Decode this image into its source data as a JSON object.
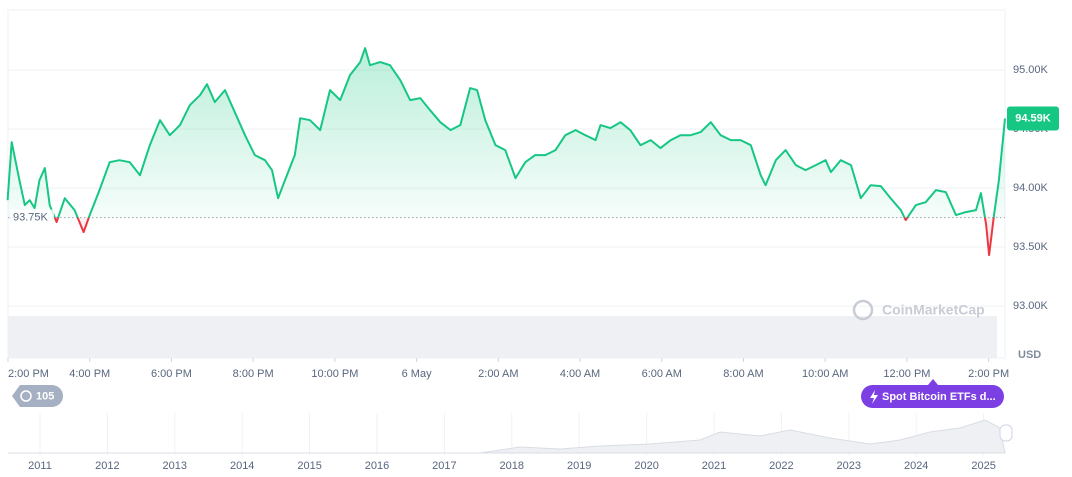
{
  "chart_data": {
    "type": "line",
    "x": [
      13.99,
      14.09,
      14.28,
      14.41,
      14.53,
      14.65,
      14.77,
      14.9,
      15.02,
      15.19,
      15.39,
      15.63,
      15.85,
      16.0,
      16.24,
      16.49,
      16.73,
      16.98,
      17.23,
      17.47,
      17.72,
      17.96,
      18.21,
      18.45,
      18.7,
      18.87,
      19.06,
      19.31,
      19.55,
      19.8,
      20.04,
      20.29,
      20.46,
      20.61,
      20.78,
      21.02,
      21.15,
      21.39,
      21.64,
      21.88,
      22.13,
      22.37,
      22.62,
      22.74,
      22.86,
      23.11,
      23.35,
      23.6,
      23.84,
      24.09,
      24.33,
      24.58,
      24.83,
      25.07,
      25.31,
      25.48,
      25.68,
      25.93,
      26.17,
      26.42,
      26.66,
      26.9,
      27.15,
      27.4,
      27.64,
      27.89,
      28.13,
      28.38,
      28.5,
      28.74,
      28.99,
      29.23,
      29.48,
      29.73,
      29.97,
      30.22,
      30.46,
      30.71,
      30.95,
      31.2,
      31.44,
      31.69,
      31.93,
      32.18,
      32.42,
      32.54,
      32.79,
      33.03,
      33.28,
      33.52,
      33.77,
      34.01,
      34.14,
      34.38,
      34.63,
      34.87,
      35.11,
      35.36,
      35.6,
      35.85,
      35.97,
      36.22,
      36.46,
      36.71,
      36.95,
      37.2,
      37.44,
      37.69,
      37.81,
      37.94,
      38.01,
      38.13,
      38.25,
      38.4
    ],
    "values": [
      93898,
      94390,
      94068,
      93856,
      93898,
      93831,
      94068,
      94170,
      93856,
      93712,
      93915,
      93814,
      93627,
      93771,
      93983,
      94220,
      94237,
      94220,
      94110,
      94364,
      94576,
      94449,
      94534,
      94703,
      94788,
      94881,
      94729,
      94831,
      94644,
      94449,
      94280,
      94237,
      94153,
      93915,
      94068,
      94280,
      94593,
      94576,
      94492,
      94831,
      94746,
      94958,
      95068,
      95187,
      95042,
      95068,
      95042,
      94915,
      94746,
      94763,
      94661,
      94559,
      94492,
      94534,
      94848,
      94831,
      94576,
      94364,
      94322,
      94085,
      94220,
      94280,
      94280,
      94322,
      94449,
      94492,
      94449,
      94407,
      94534,
      94509,
      94559,
      94492,
      94364,
      94407,
      94339,
      94407,
      94449,
      94449,
      94475,
      94559,
      94449,
      94407,
      94407,
      94364,
      94110,
      94025,
      94237,
      94322,
      94195,
      94153,
      94195,
      94237,
      94136,
      94237,
      94195,
      93915,
      94025,
      94017,
      93915,
      93814,
      93729,
      93856,
      93881,
      93983,
      93966,
      93771,
      93797,
      93814,
      93958,
      93686,
      93432,
      93771,
      94068,
      94590
    ],
    "color_up": "#16c784",
    "color_down": "#ea3943",
    "baseline": {
      "value": 93750,
      "label": "93.75K"
    },
    "current_label": "94.59K",
    "xlim": [
      14,
      38.4
    ],
    "xticks": [
      {
        "value": 14,
        "label": "2:00 PM"
      },
      {
        "value": 16,
        "label": "4:00 PM"
      },
      {
        "value": 18,
        "label": "6:00 PM"
      },
      {
        "value": 20,
        "label": "8:00 PM"
      },
      {
        "value": 22,
        "label": "10:00 PM"
      },
      {
        "value": 24,
        "label": "6 May"
      },
      {
        "value": 26,
        "label": "2:00 AM"
      },
      {
        "value": 28,
        "label": "4:00 AM"
      },
      {
        "value": 30,
        "label": "6:00 AM"
      },
      {
        "value": 32,
        "label": "8:00 AM"
      },
      {
        "value": 34,
        "label": "10:00 AM"
      },
      {
        "value": 36,
        "label": "12:00 PM"
      },
      {
        "value": 38,
        "label": "2:00 PM"
      }
    ],
    "ylim": [
      92560,
      95510
    ],
    "yticks": [
      {
        "value": 93000,
        "label": "93.00K"
      },
      {
        "value": 93500,
        "label": "93.50K"
      },
      {
        "value": 94000,
        "label": "94.00K"
      },
      {
        "value": 94500,
        "label": "94.50K"
      },
      {
        "value": 95000,
        "label": "95.00K"
      }
    ],
    "grid": true,
    "y_axis_label": "USD",
    "watermark": "CoinMarketCap",
    "event_count": 105,
    "event_label": "Spot Bitcoin ETFs d...",
    "navigator_years": [
      "2011",
      "2012",
      "2013",
      "2014",
      "2015",
      "2016",
      "2017",
      "2018",
      "2019",
      "2020",
      "2021",
      "2022",
      "2023",
      "2024",
      "2025"
    ]
  }
}
